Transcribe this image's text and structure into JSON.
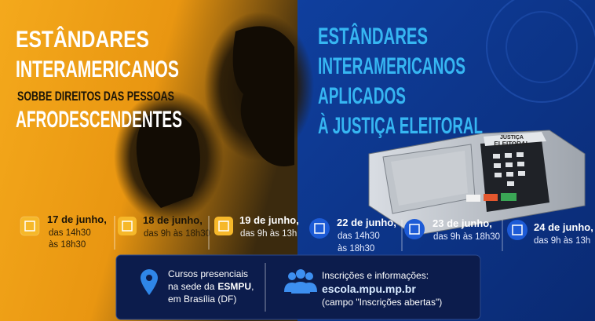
{
  "left": {
    "title": [
      "ESTÂNDARES",
      "INTERAMERICANOS"
    ],
    "subtitle": "SOBBE DIREITOS DAS PESSOAS",
    "title_end": "AFRODESCENDENTES",
    "dates": [
      {
        "day": "17 de junho,",
        "time": [
          "das 14h30",
          "às 18h30"
        ]
      },
      {
        "day": "18 de junho,",
        "time": [
          "das 9h às 18h30"
        ]
      },
      {
        "day": "19 de junho,",
        "time": [
          "das 9h às 13h"
        ]
      }
    ]
  },
  "right": {
    "title": [
      "ESTÂNDARES",
      "INTERAMERICANOS",
      "APLICADOS",
      "À JUSTIÇA ELEITORAL"
    ],
    "machine_label": [
      "JUSTIÇA",
      "ELEITORAL"
    ],
    "dates": [
      {
        "day": "22 de junho,",
        "time": [
          "das 14h30",
          "às 18h30"
        ]
      },
      {
        "day": "23 de junho,",
        "time": [
          "das 9h às 18h30"
        ]
      },
      {
        "day": "24 de junho,",
        "time": [
          "das 9h às 13h"
        ]
      }
    ]
  },
  "footer": {
    "location": {
      "line1": "Cursos presenciais",
      "sede_prefix": "na sede da",
      "sede_name": "ESMPU",
      "sede_suffix": ",",
      "city": "em Brasília (DF)"
    },
    "inscriptions": {
      "label": "Inscrições e informações:",
      "url": "escola.mpu.mp.br",
      "note": "(campo \"Inscrições abertas\")"
    }
  }
}
